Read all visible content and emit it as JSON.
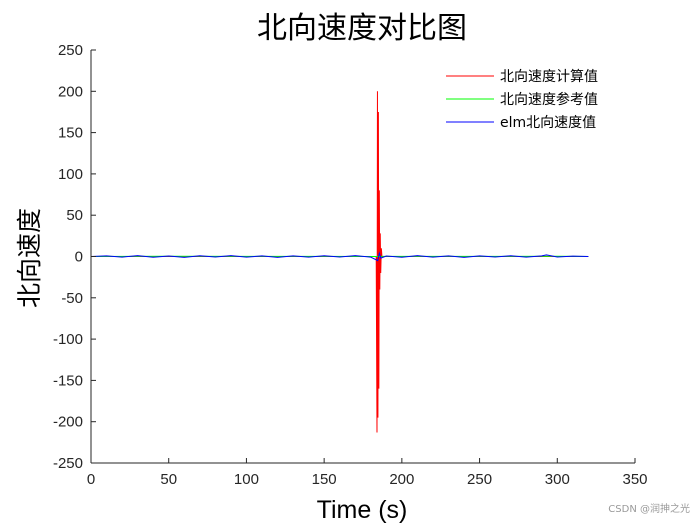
{
  "chart_data": {
    "type": "line",
    "title": "北向速度对比图",
    "xlabel": "Time (s)",
    "ylabel": "北向速度",
    "xlim": [
      0,
      350
    ],
    "ylim": [
      -250,
      250
    ],
    "xticks": [
      0,
      50,
      100,
      150,
      200,
      250,
      300,
      350
    ],
    "yticks": [
      -250,
      -200,
      -150,
      -100,
      -50,
      0,
      50,
      100,
      150,
      200,
      250
    ],
    "grid": false,
    "legend_position": "top-right",
    "series": [
      {
        "name": "北向速度计算值",
        "color": "#ff0000",
        "x": [
          0,
          183.5,
          184.0,
          184.3,
          184.6,
          184.9,
          185.2,
          185.5,
          185.8,
          186.1,
          186.4,
          186.8,
          187.2,
          320
        ],
        "y": [
          0,
          0,
          -213,
          200,
          -195,
          175,
          -160,
          80,
          -40,
          28,
          -20,
          10,
          0,
          0
        ]
      },
      {
        "name": "北向速度参考值",
        "color": "#00ff00",
        "x": [
          0,
          50,
          100,
          150,
          183,
          190,
          250,
          300,
          320
        ],
        "y": [
          0,
          0.3,
          0.2,
          0.1,
          0,
          0.2,
          0.1,
          0.3,
          0
        ]
      },
      {
        "name": "elm北向速度值",
        "color": "#0000ff",
        "x": [
          0,
          10,
          20,
          30,
          40,
          50,
          60,
          70,
          80,
          90,
          100,
          110,
          120,
          130,
          140,
          150,
          160,
          170,
          180,
          184.5,
          185.5,
          186.5,
          190,
          200,
          210,
          220,
          230,
          240,
          250,
          260,
          270,
          280,
          290,
          293,
          300,
          310,
          320
        ],
        "y": [
          0,
          0.8,
          -0.7,
          1.1,
          -0.9,
          0.6,
          -1.0,
          0.9,
          -0.6,
          1.0,
          -0.8,
          0.7,
          -1.1,
          0.8,
          -0.7,
          0.9,
          -0.6,
          1.0,
          -0.8,
          -5,
          4,
          -2,
          0.6,
          -0.9,
          1.1,
          -0.7,
          0.8,
          -1.0,
          0.7,
          -0.6,
          0.9,
          -0.8,
          0.7,
          2.0,
          -0.6,
          0.5,
          0
        ]
      }
    ]
  },
  "watermark": "CSDN @润抻之光"
}
